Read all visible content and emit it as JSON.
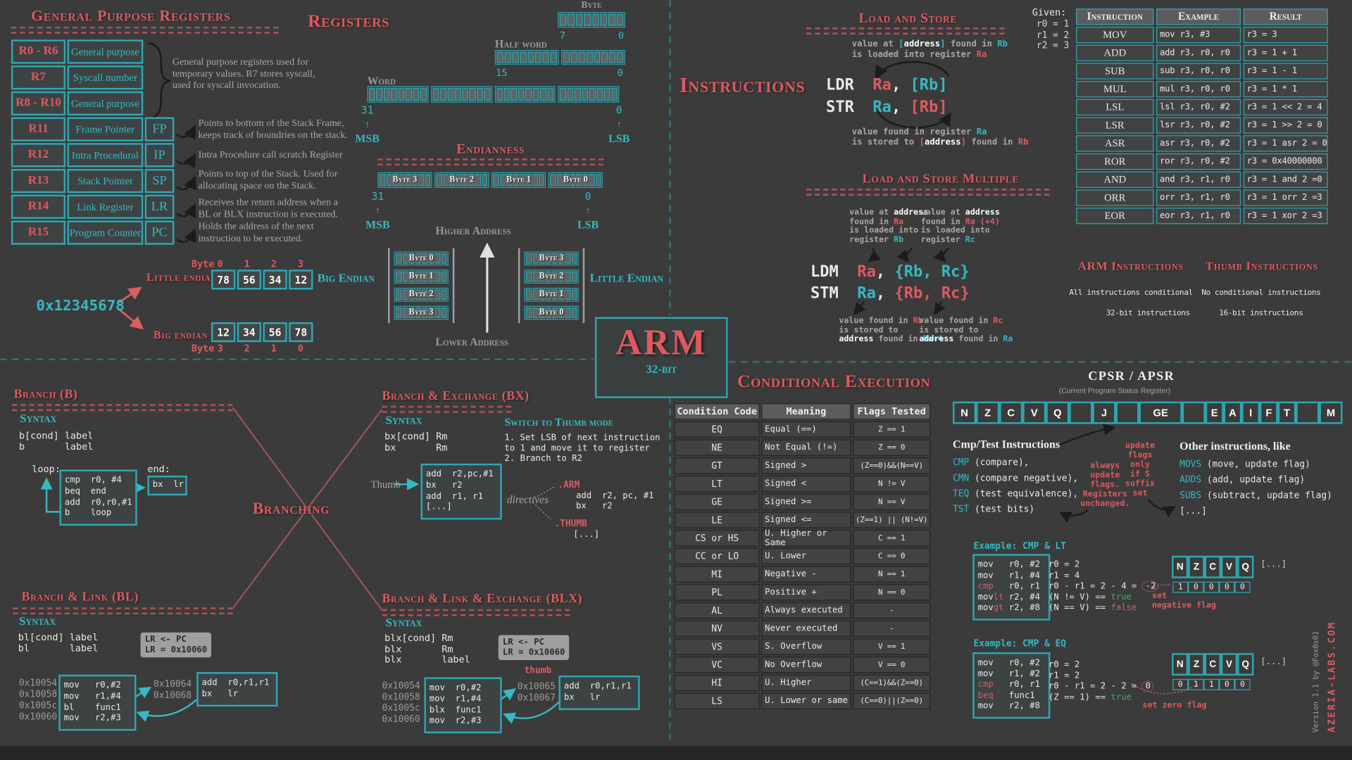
{
  "gpr": {
    "title": "General Purpose Registers",
    "rows": [
      {
        "reg": "R0 - R6",
        "desc": "General purpose",
        "abbr": ""
      },
      {
        "reg": "R7",
        "desc": "Syscall number",
        "abbr": ""
      },
      {
        "reg": "R8 - R10",
        "desc": "General purpose",
        "abbr": ""
      },
      {
        "reg": "R11",
        "desc": "Frame Pointer",
        "abbr": "FP"
      },
      {
        "reg": "R12",
        "desc": "Intra Procedural",
        "abbr": "IP"
      },
      {
        "reg": "R13",
        "desc": "Stack Pointer",
        "abbr": "SP"
      },
      {
        "reg": "R14",
        "desc": "Link Register",
        "abbr": "LR"
      },
      {
        "reg": "R15",
        "desc": "Program Counter",
        "abbr": "PC"
      }
    ],
    "brace_note": "General purpose registers used for\ntemporary values. R7 stores syscall,\nused for syscall invocation.",
    "notes": [
      "Points to bottom of the Stack Frame,\nkeeps track of boundries on the stack.",
      "Intra Procedure call scratch Register",
      "Points to top of the Stack. Used for\nallocating space on the Stack.",
      "Receives the return address when a\nBL or BLX instruction is executed.",
      "Holds the address of the next\ninstruction to be executed."
    ]
  },
  "registers": {
    "title": "Registers",
    "byte": {
      "label": "Byte",
      "hi": "7",
      "lo": "0",
      "bits": 8
    },
    "halfword": {
      "label": "Half word",
      "hi": "15",
      "lo": "0",
      "bits": 16
    },
    "word": {
      "label": "Word",
      "hi": "31",
      "lo": "0",
      "msb": "MSB",
      "lsb": "LSB",
      "bits": 32
    }
  },
  "endianness": {
    "title": "Endianness",
    "reg_bytes": [
      "Byte 3",
      "Byte 2",
      "Byte 1",
      "Byte 0"
    ],
    "hi": "31",
    "lo": "0",
    "msb": "MSB",
    "lsb": "LSB",
    "higher": "Higher Address",
    "lower": "Lower Address",
    "big": {
      "label": "Big Endian",
      "bytes": [
        "Byte 0",
        "Byte 1",
        "Byte 2",
        "Byte 3"
      ]
    },
    "little": {
      "label": "Little Endian",
      "bytes": [
        "Byte 3",
        "Byte 2",
        "Byte 1",
        "Byte 0"
      ]
    }
  },
  "endian_example": {
    "value": "0x12345678",
    "byte_label": "Byte",
    "top_indices": [
      "0",
      "1",
      "2",
      "3"
    ],
    "bottom_indices": [
      "3",
      "2",
      "1",
      "0"
    ],
    "little_label": "Little endian",
    "little_bytes": [
      "78",
      "56",
      "34",
      "12"
    ],
    "big_label": "Big endian",
    "big_bytes": [
      "12",
      "34",
      "56",
      "78"
    ]
  },
  "instructions_title": "Instructions",
  "load_store": {
    "title": "Load and Store",
    "note_top": [
      [
        [
          "value at ",
          "g"
        ],
        [
          "[",
          "t"
        ],
        [
          "address",
          "b"
        ],
        [
          "]",
          "t"
        ],
        [
          " found in ",
          "g"
        ],
        [
          "Rb",
          "t"
        ]
      ],
      [
        [
          "is loaded into register ",
          "g"
        ],
        [
          "Ra",
          "r"
        ]
      ]
    ],
    "ldr": [
      [
        [
          "LDR  ",
          "w"
        ],
        [
          "Ra",
          "r"
        ],
        [
          ", ",
          "w"
        ],
        [
          "[Rb]",
          "t"
        ]
      ]
    ],
    "str": [
      [
        [
          "STR  ",
          "w"
        ],
        [
          "Ra",
          "t"
        ],
        [
          ", ",
          "w"
        ],
        [
          "[Rb]",
          "r"
        ]
      ]
    ],
    "note_bottom": [
      [
        [
          "value found in register ",
          "g"
        ],
        [
          "Ra",
          "t"
        ]
      ],
      [
        [
          "is stored to ",
          "g"
        ],
        [
          "[",
          "r"
        ],
        [
          "address",
          "b"
        ],
        [
          "]",
          "r"
        ],
        [
          " found in ",
          "g"
        ],
        [
          "Rb",
          "r"
        ]
      ]
    ]
  },
  "lsm": {
    "title": "Load and Store Multiple",
    "note_left": [
      [
        [
          "value at ",
          "g"
        ],
        [
          "address",
          "b"
        ]
      ],
      [
        [
          "found in ",
          "g"
        ],
        [
          "Ra",
          "r"
        ]
      ],
      [
        [
          "is loaded into",
          "g"
        ]
      ],
      [
        [
          "register ",
          "g"
        ],
        [
          "Rb",
          "t"
        ]
      ]
    ],
    "note_right": [
      [
        [
          "value at ",
          "g"
        ],
        [
          "address",
          "b"
        ]
      ],
      [
        [
          "found in ",
          "g"
        ],
        [
          "Ra (+4)",
          "r"
        ]
      ],
      [
        [
          "is loaded into",
          "g"
        ]
      ],
      [
        [
          "register ",
          "g"
        ],
        [
          "Rc",
          "t"
        ]
      ]
    ],
    "ldm": [
      [
        [
          "LDM  ",
          "w"
        ],
        [
          "Ra",
          "r"
        ],
        [
          ", ",
          "w"
        ],
        [
          "{Rb, Rc}",
          "t"
        ]
      ]
    ],
    "stm": [
      [
        [
          "STM  ",
          "w"
        ],
        [
          "Ra",
          "t"
        ],
        [
          ", ",
          "w"
        ],
        [
          "{Rb, Rc}",
          "r"
        ]
      ]
    ],
    "note_bottom_left": [
      [
        [
          "value found in ",
          "g"
        ],
        [
          "Rb",
          "r"
        ]
      ],
      [
        [
          "is stored to",
          "g"
        ]
      ],
      [
        [
          "address",
          "b"
        ],
        [
          " found in ",
          "g"
        ],
        [
          "Ra+4",
          "t"
        ]
      ]
    ],
    "note_bottom_right": [
      [
        [
          "value found in ",
          "g"
        ],
        [
          "Rc",
          "r"
        ]
      ],
      [
        [
          "is stored to",
          "g"
        ]
      ],
      [
        [
          "address",
          "b"
        ],
        [
          " found in ",
          "g"
        ],
        [
          "Ra",
          "t"
        ]
      ]
    ]
  },
  "given": {
    "label": "Given:",
    "lines": [
      "r0 = 1",
      "r1 = 2",
      "r2 = 3"
    ]
  },
  "instr_table": {
    "headers": [
      "Instruction",
      "Example",
      "Result"
    ],
    "rows": [
      [
        "MOV",
        "mov r3, #3",
        "r3 = 3"
      ],
      [
        "ADD",
        "add r3, r0, r0",
        "r3 = 1 + 1"
      ],
      [
        "SUB",
        "sub r3, r0, r0",
        "r3 = 1 - 1"
      ],
      [
        "MUL",
        "mul r3, r0, r0",
        "r3 = 1 * 1"
      ],
      [
        "LSL",
        "lsl r3, r0, #2",
        "r3 = 1 << 2 = 4"
      ],
      [
        "LSR",
        "lsr r3, r0, #2",
        "r3 = 1 >> 2 = 0"
      ],
      [
        "ASR",
        "asr r3, r0, #2",
        "r3 = 1 asr 2 = 0"
      ],
      [
        "ROR",
        "ror r3, r0, #2",
        "r3 = 0x40000000"
      ],
      [
        "AND",
        "and r3, r1, r0",
        "r3 = 1 and 2 =0"
      ],
      [
        "ORR",
        "orr r3, r1, r0",
        "r3 = 1 orr 2 =3"
      ],
      [
        "EOR",
        "eor r3, r1, r0",
        "r3 = 1 xor 2 =3"
      ]
    ]
  },
  "arm_thumb": {
    "arm_title": "ARM Instructions",
    "ar m_items_note": "",
    "arm_items": [
      "All instructions conditional",
      "32-bit instructions"
    ],
    "thumb_title": "Thumb Instructions",
    "thumb_items": [
      "No conditional instructions",
      "16-bit instructions"
    ]
  },
  "logo": {
    "name": "ARM",
    "sub": "32-bit"
  },
  "branching_title": "Branching",
  "branch_b": {
    "title": "Branch (B)",
    "syntax_label": "Syntax",
    "syntax": [
      "b[cond] label",
      "b       label"
    ],
    "loop_label": "loop:",
    "loop_code": [
      "cmp  r0, #4",
      "beq  end",
      "add  r0,r0,#1",
      "b    loop"
    ],
    "end_label": "end:",
    "end_code": [
      "bx  lr"
    ]
  },
  "branch_bx": {
    "title": "Branch & Exchange (BX)",
    "syntax_label": "Syntax",
    "syntax": [
      "bx[cond] Rm",
      "bx       Rm"
    ],
    "switch_title": "Switch to Thumb mode",
    "steps": [
      "1. Set LSB of next instruction",
      "to 1 and move it to register",
      "2. Branch to R2"
    ],
    "thumb_label": "Thumb",
    "code": [
      "add  r2,pc,#1",
      "bx   r2",
      "add  r1, r1",
      "[...]"
    ],
    "directives_label": "directives",
    "arm_directive": ".ARM",
    "arm_code": [
      "add  r2, pc, #1",
      "bx   r2"
    ],
    "thumb_directive": ".THUMB",
    "thumb_code": [
      "[...]"
    ]
  },
  "branch_bl": {
    "title": "Branch & Link  (BL)",
    "syntax_label": "Syntax",
    "syntax": [
      "bl[cond] label",
      "bl       label"
    ],
    "lr_note": [
      "LR <- PC",
      "LR = 0x10060"
    ],
    "addresses": [
      "0x10054",
      "0x10058",
      "0x1005c",
      "0x10060"
    ],
    "code": [
      "mov   r0,#2",
      "mov   r1,#4",
      "bl    func1",
      "mov   r2,#3"
    ],
    "addresses2": [
      "0x10064",
      "0x10068"
    ],
    "func_code": [
      "add  r0,r1,r1",
      "bx   lr"
    ]
  },
  "branch_blx": {
    "title": "Branch & Link & Exchange (BLX)",
    "syntax_label": "Syntax",
    "syntax": [
      "blx[cond] Rm",
      "blx       Rm",
      "blx       label"
    ],
    "lr_note": [
      "LR <- PC",
      "LR = 0x10060"
    ],
    "thumb_label": "thumb",
    "addresses": [
      "0x10054",
      "0x10058",
      "0x1005c",
      "0x10060"
    ],
    "code": [
      "mov  r0,#2",
      "mov  r1,#4",
      "blx  func1",
      "mov  r2,#3"
    ],
    "addresses2": [
      "0x10065",
      "0x10067"
    ],
    "func_code": [
      "add  r0,r1,r1",
      "bx   lr"
    ]
  },
  "condexec": {
    "title": "Conditional Execution",
    "headers": [
      "Condition Code",
      "Meaning",
      "Flags Tested"
    ],
    "rows": [
      [
        "EQ",
        "Equal (==)",
        "Z == 1"
      ],
      [
        "NE",
        "Not Equal (!=)",
        "Z == 0"
      ],
      [
        "GT",
        "Signed >",
        "(Z==0)&&(N==V)"
      ],
      [
        "LT",
        "Signed <",
        "N != V"
      ],
      [
        "GE",
        "Signed >=",
        "N == V"
      ],
      [
        "LE",
        "Signed <=",
        "(Z==1) || (N!=V)"
      ],
      [
        "CS or HS",
        "U. Higher or Same",
        "C == 1"
      ],
      [
        "CC or LO",
        "U. Lower",
        "C == 0"
      ],
      [
        "MI",
        "Negative -",
        "N == 1"
      ],
      [
        "PL",
        "Positive +",
        "N == 0"
      ],
      [
        "AL",
        "Always executed",
        "-"
      ],
      [
        "NV",
        "Never executed",
        "-"
      ],
      [
        "VS",
        "S. Overflow",
        "V == 1"
      ],
      [
        "VC",
        "No Overflow",
        "V == 0"
      ],
      [
        "HI",
        "U. Higher",
        "(C==1)&&(Z==0)"
      ],
      [
        "LS",
        "U. Lower or same",
        "(C==0)||(Z==0)"
      ]
    ]
  },
  "cpsr": {
    "title": "CPSR / APSR",
    "subtitle": "(Current Program Status Register)",
    "g1": [
      "N",
      "Z",
      "C",
      "V",
      "Q"
    ],
    "g2": [
      "J"
    ],
    "g3": [
      "GE"
    ],
    "g4": [
      "E",
      "A",
      "I",
      "F",
      "T"
    ],
    "g5": [
      "M"
    ]
  },
  "cmptest": {
    "title": "Cmp/Test Instructions",
    "items": [
      [
        [
          "CMP",
          "t"
        ],
        [
          " (compare),",
          "w"
        ]
      ],
      [
        [
          "CMN",
          "t"
        ],
        [
          " (compare negative),",
          "w"
        ]
      ],
      [
        [
          "TEQ",
          "t"
        ],
        [
          " (test equivalence),",
          "w"
        ]
      ],
      [
        [
          "TST",
          "t"
        ],
        [
          " (test bits)",
          "w"
        ]
      ]
    ],
    "ann_always": "always\nupdate\nflags.\nRegisters\nunchanged.",
    "ann_update": "update\nflags\nonly\nif S\nsuffix\nset",
    "other_title": "Other instructions, like",
    "other_items": [
      [
        [
          "MOVS",
          "t"
        ],
        [
          " (move, update flag)",
          "w"
        ]
      ],
      [
        [
          "ADDS",
          "t"
        ],
        [
          " (add, update flag)",
          "w"
        ]
      ],
      [
        [
          "SUBS",
          "t"
        ],
        [
          " (subtract, update flag)",
          "w"
        ]
      ],
      [
        [
          "[...]",
          "w"
        ]
      ]
    ]
  },
  "example1": {
    "title": "Example: CMP & LT",
    "code": [
      [
        [
          "mov   r0, #2",
          "w"
        ]
      ],
      [
        [
          "mov   r1, #4",
          "w"
        ]
      ],
      [
        [
          "cmp",
          "r"
        ],
        [
          "   r0, r1",
          "w"
        ]
      ],
      [
        [
          "mov",
          "w"
        ],
        [
          "lt",
          "r"
        ],
        [
          " r2, #4",
          "w"
        ]
      ],
      [
        [
          "mov",
          "w"
        ],
        [
          "gt",
          "r"
        ],
        [
          " r2, #8",
          "w"
        ]
      ]
    ],
    "results": [
      [
        [
          "r0 = 2",
          "w"
        ]
      ],
      [
        [
          "r1 = 4",
          "w"
        ]
      ],
      [
        [
          "r0 - r1 = 2 - 4 = ",
          "w"
        ],
        [
          "-2",
          "circ"
        ]
      ],
      [
        [
          "(N != V) == ",
          "w"
        ],
        [
          "true",
          "gr"
        ]
      ],
      [
        [
          "(N == V) == ",
          "w"
        ],
        [
          "false",
          "r"
        ]
      ]
    ],
    "flags_header": [
      "N",
      "Z",
      "C",
      "V",
      "Q"
    ],
    "flags_more": "[...]",
    "flags_values": [
      "1",
      "0",
      "0",
      "0",
      "0"
    ],
    "annotation": "set\nnegative flag"
  },
  "example2": {
    "title": "Example: CMP & EQ",
    "code": [
      [
        [
          "mov   r0, #2",
          "w"
        ]
      ],
      [
        [
          "mov   r1, #2",
          "w"
        ]
      ],
      [
        [
          "cmp",
          "r"
        ],
        [
          "   r0, r1",
          "w"
        ]
      ],
      [
        [
          "beq",
          "r"
        ],
        [
          "   func1",
          "w"
        ]
      ],
      [
        [
          "mov   r2, #8",
          "w"
        ]
      ]
    ],
    "results": [
      [
        [
          "r0 = 2",
          "w"
        ]
      ],
      [
        [
          "r1 = 2",
          "w"
        ]
      ],
      [
        [
          "r0 - r1 = 2 - 2 = ",
          "w"
        ],
        [
          "0",
          "circ"
        ]
      ],
      [
        [
          "(Z == 1) == ",
          "w"
        ],
        [
          "true",
          "gr"
        ]
      ]
    ],
    "flags_header": [
      "N",
      "Z",
      "C",
      "V",
      "Q"
    ],
    "flags_more": "[...]",
    "flags_values": [
      "0",
      "1",
      "1",
      "0",
      "0"
    ],
    "annotation": "set zero flag"
  },
  "footer": {
    "version": "Version 1.1 by @Fox0x01",
    "site": "AZERIA-LABS.COM"
  }
}
